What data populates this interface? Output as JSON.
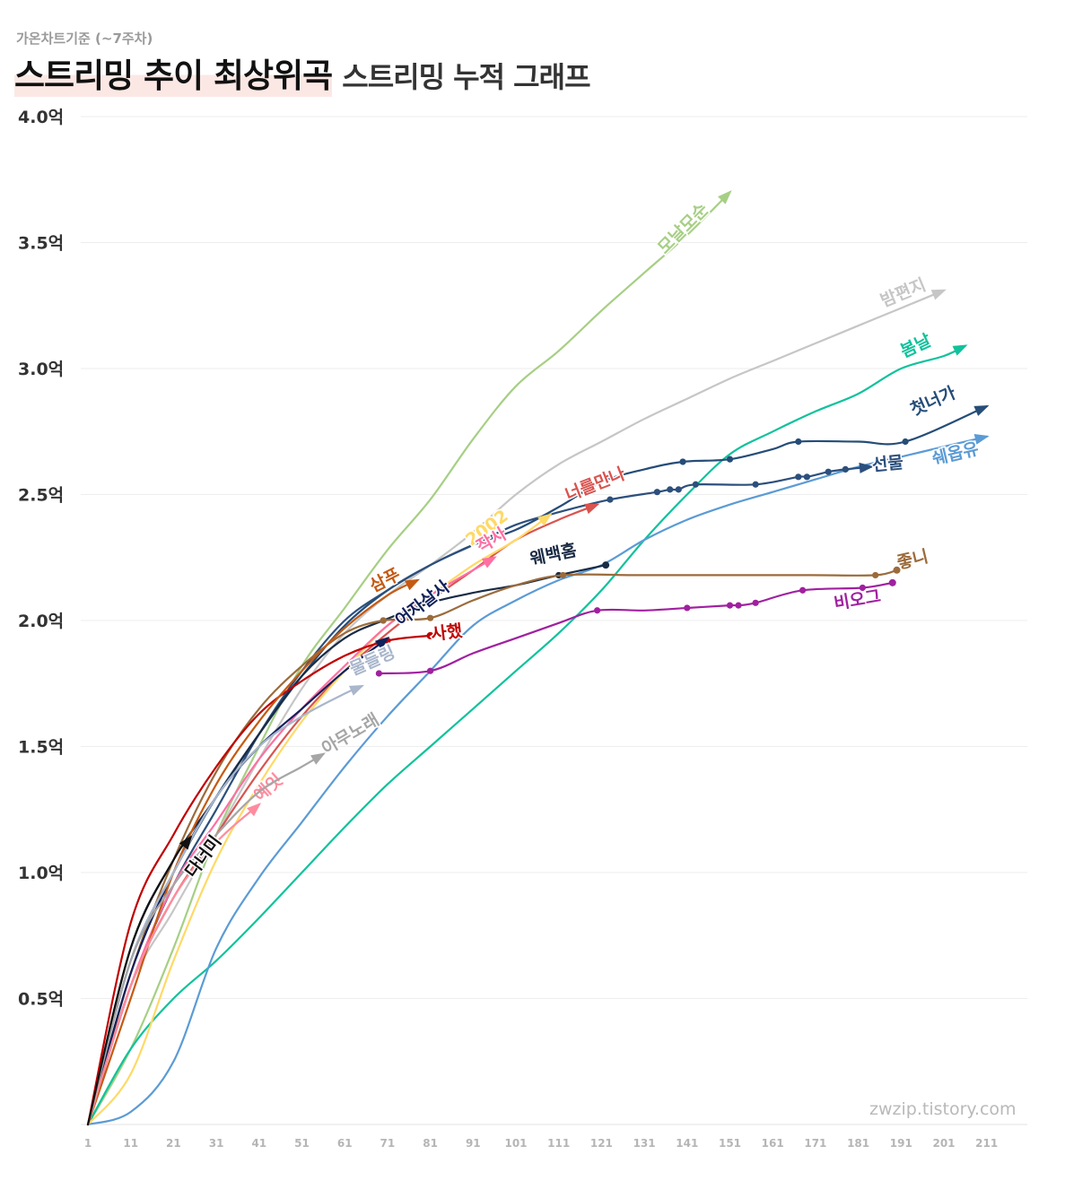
{
  "header": {
    "subtitle": "가온차트기준 (~7주차)",
    "title": "스트리밍 추이 최상위곡",
    "title_sub": "스트리밍 누적 그래프"
  },
  "watermark": "zwzip.tistory.com",
  "chart_data": {
    "type": "line",
    "title": "스트리밍 추이 최상위곡",
    "subtitle": "스트리밍 누적 그래프",
    "xlabel": "",
    "ylabel": "",
    "xlim": [
      1,
      221
    ],
    "ylim": [
      0,
      4.0
    ],
    "x_ticks": [
      "1",
      "11",
      "21",
      "31",
      "41",
      "51",
      "61",
      "71",
      "81",
      "91",
      "101",
      "111",
      "121",
      "131",
      "141",
      "151",
      "161",
      "171",
      "181",
      "191",
      "201",
      "211"
    ],
    "y_ticks": [
      {
        "value": 0.5,
        "label": "0.5억"
      },
      {
        "value": 1.0,
        "label": "1.0억"
      },
      {
        "value": 1.5,
        "label": "1.5억"
      },
      {
        "value": 2.0,
        "label": "2.0억"
      },
      {
        "value": 2.5,
        "label": "2.5억"
      },
      {
        "value": 3.0,
        "label": "3.0억"
      },
      {
        "value": 3.5,
        "label": "3.5억"
      },
      {
        "value": 4.0,
        "label": "4.0억"
      }
    ],
    "grid": true,
    "legend": "inline labels at line ends",
    "series": [
      {
        "name": "모날모순",
        "color": "#a6cf84",
        "end": "arrow",
        "x": [
          1,
          11,
          21,
          31,
          41,
          51,
          61,
          71,
          81,
          91,
          101,
          111,
          121,
          131,
          141,
          151
        ],
        "y": [
          0.0,
          0.3,
          0.7,
          1.15,
          1.5,
          1.82,
          2.05,
          2.28,
          2.48,
          2.72,
          2.93,
          3.07,
          3.23,
          3.38,
          3.53,
          3.7
        ],
        "label_x": 141,
        "label_y": 3.54
      },
      {
        "name": "밤편지",
        "color": "#c6c6c6",
        "end": "arrow",
        "x": [
          1,
          11,
          21,
          31,
          41,
          51,
          61,
          71,
          81,
          91,
          101,
          111,
          121,
          131,
          141,
          151,
          161,
          171,
          181,
          191,
          201
        ],
        "y": [
          0.0,
          0.55,
          0.85,
          1.15,
          1.45,
          1.73,
          1.95,
          2.1,
          2.22,
          2.35,
          2.5,
          2.62,
          2.71,
          2.8,
          2.88,
          2.96,
          3.03,
          3.1,
          3.17,
          3.24,
          3.31
        ],
        "label_x": 192,
        "label_y": 3.28
      },
      {
        "name": "봄날",
        "color": "#10c29c",
        "end": "arrow",
        "x": [
          1,
          11,
          21,
          31,
          41,
          51,
          61,
          71,
          81,
          91,
          101,
          111,
          121,
          131,
          141,
          151,
          161,
          171,
          181,
          191,
          201,
          206
        ],
        "y": [
          0.0,
          0.3,
          0.5,
          0.65,
          0.82,
          1.0,
          1.18,
          1.35,
          1.5,
          1.65,
          1.8,
          1.95,
          2.12,
          2.32,
          2.5,
          2.66,
          2.75,
          2.83,
          2.9,
          3.0,
          3.05,
          3.09
        ],
        "label_x": 195,
        "label_y": 3.07
      },
      {
        "name": "첫너가",
        "color": "#254d78",
        "end": "arrow",
        "markers": [
          140,
          151,
          167,
          192
        ],
        "x": [
          1,
          11,
          21,
          31,
          41,
          51,
          61,
          71,
          81,
          91,
          101,
          111,
          121,
          131,
          140,
          151,
          161,
          167,
          181,
          192,
          211
        ],
        "y": [
          0.0,
          0.65,
          1.0,
          1.3,
          1.55,
          1.78,
          1.98,
          2.12,
          2.22,
          2.3,
          2.36,
          2.45,
          2.55,
          2.6,
          2.63,
          2.64,
          2.68,
          2.71,
          2.71,
          2.71,
          2.85
        ],
        "label_x": 199,
        "label_y": 2.85
      },
      {
        "name": "쉐옵유",
        "color": "#5b9bd5",
        "end": "arrow",
        "x": [
          1,
          11,
          21,
          31,
          41,
          51,
          61,
          71,
          81,
          91,
          101,
          111,
          121,
          131,
          141,
          151,
          161,
          171,
          181,
          191,
          201,
          211
        ],
        "y": [
          0.0,
          0.05,
          0.25,
          0.7,
          0.98,
          1.2,
          1.42,
          1.62,
          1.8,
          1.98,
          2.08,
          2.16,
          2.22,
          2.32,
          2.4,
          2.46,
          2.51,
          2.56,
          2.61,
          2.65,
          2.69,
          2.73
        ],
        "label_x": 204,
        "label_y": 2.64
      },
      {
        "name": "선물",
        "color": "#2c4f7c",
        "end": "arrow",
        "markers": [
          123,
          134,
          137,
          139,
          143,
          157,
          167,
          169,
          174,
          178
        ],
        "x": [
          1,
          11,
          21,
          31,
          41,
          51,
          61,
          71,
          81,
          91,
          101,
          111,
          123,
          134,
          137,
          139,
          143,
          157,
          167,
          169,
          174,
          178,
          184
        ],
        "y": [
          0.0,
          0.55,
          0.95,
          1.25,
          1.55,
          1.8,
          2.0,
          2.12,
          2.22,
          2.3,
          2.38,
          2.43,
          2.48,
          2.51,
          2.52,
          2.52,
          2.54,
          2.54,
          2.57,
          2.57,
          2.59,
          2.6,
          2.61
        ],
        "label_x": 188,
        "label_y": 2.6
      },
      {
        "name": "너를만나",
        "color": "#d9534f",
        "end": "arrow",
        "x": [
          1,
          11,
          21,
          31,
          41,
          51,
          61,
          71,
          81,
          91,
          101,
          111,
          120
        ],
        "y": [
          0.0,
          0.55,
          0.9,
          1.15,
          1.4,
          1.62,
          1.8,
          1.95,
          2.08,
          2.2,
          2.32,
          2.4,
          2.46
        ],
        "label_x": 120,
        "label_y": 2.52
      },
      {
        "name": "2002",
        "color": "#ffd966",
        "end": "arrow",
        "x": [
          1,
          11,
          21,
          31,
          41,
          51,
          61,
          71,
          81,
          91,
          101,
          109
        ],
        "y": [
          0.0,
          0.2,
          0.65,
          1.05,
          1.35,
          1.6,
          1.8,
          1.98,
          2.1,
          2.22,
          2.32,
          2.42
        ],
        "label_x": 95,
        "label_y": 2.35
      },
      {
        "name": "작사",
        "color": "#ff6fa3",
        "end": "arrow",
        "x": [
          1,
          11,
          21,
          31,
          41,
          51,
          61,
          71,
          81,
          91,
          96
        ],
        "y": [
          0.0,
          0.55,
          0.95,
          1.2,
          1.45,
          1.65,
          1.82,
          1.98,
          2.1,
          2.2,
          2.25
        ],
        "label_x": 96,
        "label_y": 2.3
      },
      {
        "name": "웨백홈",
        "color": "#1a2b44",
        "end": "dot",
        "markers": [
          70,
          81,
          111,
          122
        ],
        "x": [
          1,
          11,
          21,
          31,
          41,
          51,
          61,
          70,
          81,
          91,
          101,
          111,
          122
        ],
        "y": [
          0.0,
          0.7,
          1.05,
          1.3,
          1.55,
          1.78,
          1.93,
          2.0,
          2.07,
          2.11,
          2.14,
          2.18,
          2.22
        ],
        "label_x": 110,
        "label_y": 2.24
      },
      {
        "name": "좋니",
        "color": "#9b6b3b",
        "end": "dot",
        "markers": [
          70,
          81,
          112,
          185,
          190
        ],
        "x": [
          1,
          11,
          21,
          31,
          41,
          51,
          61,
          70,
          81,
          91,
          101,
          112,
          130,
          150,
          170,
          185,
          190
        ],
        "y": [
          0.0,
          0.6,
          1.05,
          1.4,
          1.65,
          1.82,
          1.95,
          2.0,
          2.01,
          2.08,
          2.14,
          2.18,
          2.18,
          2.18,
          2.18,
          2.18,
          2.2
        ],
        "label_x": 194,
        "label_y": 2.22
      },
      {
        "name": "비오그",
        "color": "#a020a0",
        "end": "dot",
        "markers": [
          69,
          81,
          120,
          141,
          151,
          153,
          157,
          168,
          182,
          189
        ],
        "x": [
          69,
          81,
          91,
          101,
          111,
          120,
          131,
          141,
          151,
          153,
          157,
          168,
          182,
          189
        ],
        "y": [
          1.79,
          1.8,
          1.87,
          1.93,
          1.99,
          2.04,
          2.04,
          2.05,
          2.06,
          2.06,
          2.07,
          2.12,
          2.13,
          2.15
        ],
        "label_x": 181,
        "label_y": 2.06
      },
      {
        "name": "사했",
        "color": "#c00000",
        "end": "dot",
        "markers": [
          71,
          81
        ],
        "x": [
          1,
          11,
          21,
          31,
          41,
          51,
          61,
          71,
          81
        ],
        "y": [
          0.0,
          0.8,
          1.15,
          1.42,
          1.63,
          1.76,
          1.86,
          1.92,
          1.94
        ],
        "label_x": 85,
        "label_y": 1.93
      },
      {
        "name": "어자살사",
        "color": "#10205a",
        "end": "arrow",
        "x": [
          1,
          11,
          21,
          31,
          41,
          51,
          61,
          71
        ],
        "y": [
          0.0,
          0.6,
          1.0,
          1.3,
          1.5,
          1.65,
          1.8,
          1.93
        ],
        "label_x": 80,
        "label_y": 2.05
      },
      {
        "name": "삼푸",
        "color": "#c55a11",
        "end": "arrow",
        "x": [
          1,
          11,
          21,
          31,
          41,
          51,
          61,
          71,
          78
        ],
        "y": [
          0.0,
          0.5,
          1.0,
          1.35,
          1.6,
          1.8,
          1.97,
          2.1,
          2.16
        ],
        "label_x": 71,
        "label_y": 2.14
      },
      {
        "name": "물들링",
        "color": "#a9b6cc",
        "end": "arrow",
        "x": [
          1,
          11,
          21,
          31,
          41,
          51,
          61,
          65
        ],
        "y": [
          0.0,
          0.65,
          1.0,
          1.3,
          1.5,
          1.62,
          1.71,
          1.74
        ],
        "label_x": 68,
        "label_y": 1.82
      },
      {
        "name": "예잇",
        "color": "#ff8c9e",
        "end": "arrow",
        "x": [
          1,
          11,
          21,
          31,
          41
        ],
        "y": [
          0.0,
          0.55,
          0.9,
          1.12,
          1.27
        ],
        "label_x": 44,
        "label_y": 1.32
      },
      {
        "name": "아무노래",
        "color": "#a6a6a6",
        "end": "arrow",
        "x": [
          1,
          11,
          21,
          31,
          41,
          51,
          56
        ],
        "y": [
          0.0,
          0.65,
          0.95,
          1.15,
          1.32,
          1.42,
          1.47
        ],
        "label_x": 63,
        "label_y": 1.53
      },
      {
        "name": "다너미",
        "color": "#111111",
        "end": "arrow",
        "x": [
          1,
          11,
          21,
          25
        ],
        "y": [
          0.0,
          0.7,
          1.05,
          1.14
        ],
        "label_x": 29,
        "label_y": 1.05
      }
    ]
  }
}
